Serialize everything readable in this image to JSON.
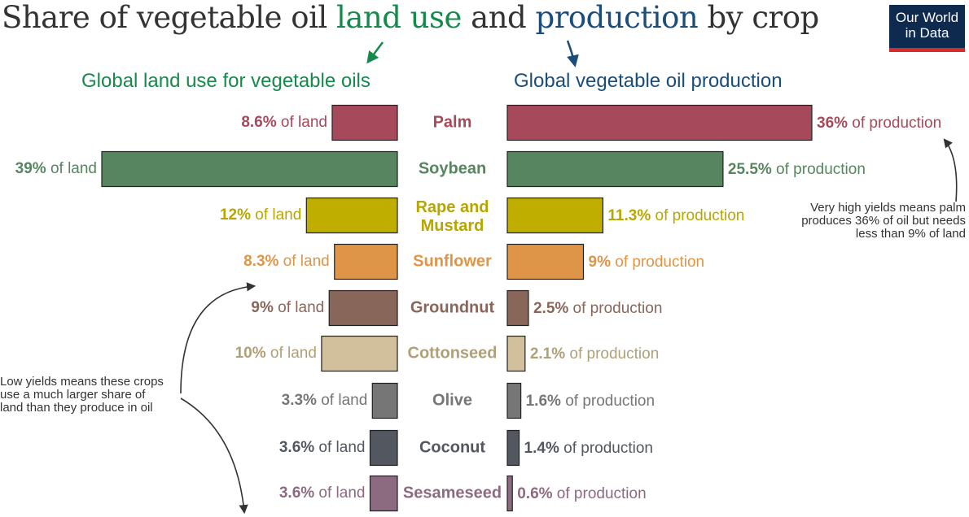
{
  "header": {
    "title_parts": [
      {
        "text": "Share of vegetable oil ",
        "color": "#333333"
      },
      {
        "text": "land use",
        "color": "#158a4a"
      },
      {
        "text": " and ",
        "color": "#333333"
      },
      {
        "text": "production",
        "color": "#1a4d7a"
      },
      {
        "text": " by crop",
        "color": "#333333"
      }
    ],
    "logo_line1": "Our World",
    "logo_line2": "in Data",
    "land_subtitle": "Global land use for vegetable oils",
    "prod_subtitle": "Global vegetable oil production",
    "land_color": "#158a4a",
    "prod_color": "#1a4d7a"
  },
  "annotations": {
    "right": [
      "Very high yields means palm",
      "produces 36% of oil but needs",
      "less than 9% of land"
    ],
    "left": [
      "Low yields means these crops",
      "use a much larger share of",
      "land than they produce in oil"
    ]
  },
  "chart_data": {
    "type": "bar",
    "land_suffix": " of land",
    "prod_suffix": " of production",
    "categories": [
      "Palm",
      "Soybean",
      "Rape and Mustard",
      "Sunflower",
      "Groundnut",
      "Cottonseed",
      "Olive",
      "Coconut",
      "Sesameseed"
    ],
    "series": [
      {
        "name": "Global land use for vegetable oils",
        "values": [
          8.6,
          39,
          12,
          8.3,
          9,
          10,
          3.3,
          3.6,
          3.6
        ],
        "labels": [
          "8.6%",
          "39%",
          "12%",
          "8.3%",
          "9%",
          "10%",
          "3.3%",
          "3.6%",
          "3.6%"
        ]
      },
      {
        "name": "Global vegetable oil production",
        "values": [
          36,
          25.5,
          11.3,
          9,
          2.5,
          2.1,
          1.6,
          1.4,
          0.6
        ],
        "labels": [
          "36%",
          "25.5%",
          "11.3%",
          "9%",
          "2.5%",
          "2.1%",
          "1.6%",
          "1.4%",
          "0.6%"
        ]
      }
    ],
    "colors": [
      "#a6495a",
      "#578560",
      "#bfae00",
      "#de9547",
      "#89665a",
      "#d1c09b",
      "#767676",
      "#525760",
      "#8c6a80"
    ],
    "label_colors": [
      "#a6495a",
      "#578560",
      "#b8a600",
      "#de9547",
      "#89665a",
      "#b0a078",
      "#767676",
      "#525760",
      "#8c6a80"
    ]
  }
}
